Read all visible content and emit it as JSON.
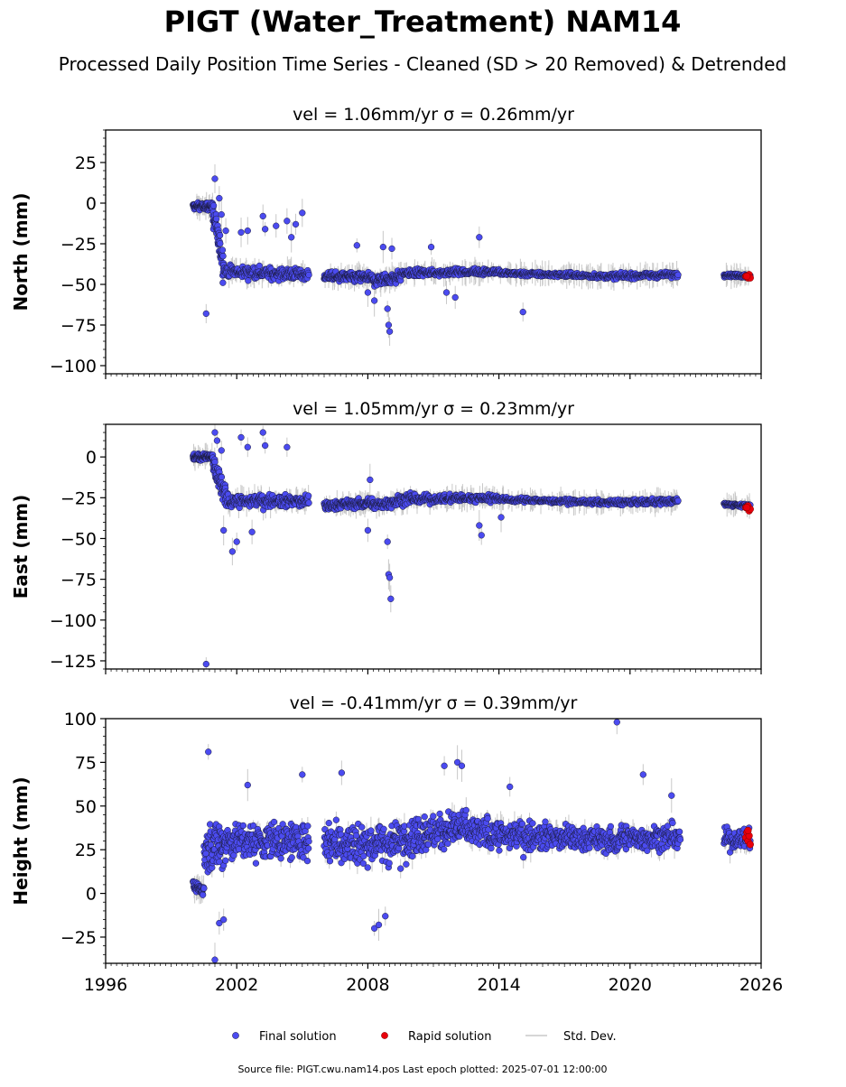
{
  "title": "PIGT (Water_Treatment) NAM14",
  "subtitle": "Processed Daily Position Time Series - Cleaned (SD > 20 Removed) & Detrended",
  "footer": "Source file: PIGT.cwu.nam14.pos  Last epoch plotted: 2025-07-01 12:00:00",
  "colors": {
    "final": "#4b4bf0",
    "final_edge": "#1a1a3a",
    "rapid": "#e8000b",
    "stddev": "#c8c8c8",
    "axis": "#000000"
  },
  "legend": {
    "position": "bottom-center",
    "entries": [
      {
        "label": "Final solution",
        "color": "#4b4bf0"
      },
      {
        "label": "Rapid solution",
        "color": "#e8000b"
      },
      {
        "label": "Std. Dev.",
        "color": "#c8c8c8"
      }
    ]
  },
  "chart_data": [
    {
      "type": "scatter",
      "subplot_title": "vel = 1.06mm/yr   σ = 0.26mm/yr",
      "ylabel": "North (mm)",
      "xlim": [
        1996,
        2026
      ],
      "ylim": [
        -105,
        45
      ],
      "yticks": [
        25,
        0,
        -25,
        -50,
        -75,
        -100
      ],
      "ytick_labels": [
        "25",
        "0",
        "−25",
        "−50",
        "−75",
        "−100"
      ],
      "segments": [
        {
          "x": [
            2000.0,
            2000.9
          ],
          "y": [
            -2,
            -2
          ],
          "spread": 3,
          "n": 90
        },
        {
          "x": [
            2000.9,
            2001.4
          ],
          "y": [
            -5,
            -38
          ],
          "spread": 12,
          "n": 60
        },
        {
          "x": [
            2001.4,
            2005.3
          ],
          "y": [
            -42,
            -44
          ],
          "spread": 5,
          "n": 220
        },
        {
          "x": [
            2006.0,
            2008.2
          ],
          "y": [
            -45,
            -46
          ],
          "spread": 4,
          "n": 150
        },
        {
          "x": [
            2008.2,
            2009.5
          ],
          "y": [
            -48,
            -45
          ],
          "spread": 5,
          "n": 90
        },
        {
          "x": [
            2009.5,
            2014.0
          ],
          "y": [
            -43,
            -42
          ],
          "spread": 3,
          "n": 230
        },
        {
          "x": [
            2014.0,
            2019.0
          ],
          "y": [
            -43,
            -45
          ],
          "spread": 2,
          "n": 220
        },
        {
          "x": [
            2019.0,
            2022.2
          ],
          "y": [
            -45,
            -44
          ],
          "spread": 2.5,
          "n": 160
        },
        {
          "x": [
            2024.3,
            2025.5
          ],
          "y": [
            -44,
            -45
          ],
          "spread": 1.5,
          "n": 70
        }
      ],
      "outliers": [
        [
          2000.6,
          -68
        ],
        [
          2001.0,
          15
        ],
        [
          2001.2,
          3
        ],
        [
          2001.3,
          -7
        ],
        [
          2001.5,
          -17
        ],
        [
          2002.2,
          -18
        ],
        [
          2002.5,
          -17
        ],
        [
          2003.2,
          -8
        ],
        [
          2003.3,
          -16
        ],
        [
          2003.8,
          -14
        ],
        [
          2004.3,
          -11
        ],
        [
          2004.5,
          -21
        ],
        [
          2004.7,
          -13
        ],
        [
          2005.0,
          -6
        ],
        [
          2007.5,
          -26
        ],
        [
          2008.0,
          -55
        ],
        [
          2008.3,
          -60
        ],
        [
          2008.7,
          -27
        ],
        [
          2008.9,
          -65
        ],
        [
          2008.95,
          -75
        ],
        [
          2009.0,
          -79
        ],
        [
          2009.1,
          -28
        ],
        [
          2010.9,
          -27
        ],
        [
          2011.6,
          -55
        ],
        [
          2012.0,
          -58
        ],
        [
          2013.1,
          -21
        ],
        [
          2015.1,
          -67
        ]
      ],
      "rapid": [
        [
          2025.3,
          -45
        ],
        [
          2025.4,
          -46
        ],
        [
          2025.45,
          -44
        ],
        [
          2025.5,
          -46
        ],
        [
          2025.35,
          -45
        ]
      ]
    },
    {
      "type": "scatter",
      "subplot_title": "vel = 1.05mm/yr   σ = 0.23mm/yr",
      "ylabel": "East (mm)",
      "xlim": [
        1996,
        2026
      ],
      "ylim": [
        -130,
        20
      ],
      "yticks": [
        0,
        -25,
        -50,
        -75,
        -100,
        -125
      ],
      "ytick_labels": [
        "0",
        "−25",
        "−50",
        "−75",
        "−100",
        "−125"
      ],
      "segments": [
        {
          "x": [
            2000.0,
            2000.9
          ],
          "y": [
            0,
            0
          ],
          "spread": 3,
          "n": 90
        },
        {
          "x": [
            2000.9,
            2001.5
          ],
          "y": [
            -5,
            -25
          ],
          "spread": 10,
          "n": 60
        },
        {
          "x": [
            2001.5,
            2005.3
          ],
          "y": [
            -27,
            -27
          ],
          "spread": 5,
          "n": 220
        },
        {
          "x": [
            2006.0,
            2008.2
          ],
          "y": [
            -30,
            -28
          ],
          "spread": 4,
          "n": 150
        },
        {
          "x": [
            2008.2,
            2010.0
          ],
          "y": [
            -30,
            -25
          ],
          "spread": 5,
          "n": 110
        },
        {
          "x": [
            2010.0,
            2014.0
          ],
          "y": [
            -26,
            -25
          ],
          "spread": 3.5,
          "n": 220
        },
        {
          "x": [
            2014.0,
            2019.0
          ],
          "y": [
            -26,
            -28
          ],
          "spread": 2,
          "n": 220
        },
        {
          "x": [
            2019.0,
            2022.2
          ],
          "y": [
            -28,
            -27
          ],
          "spread": 2.5,
          "n": 160
        },
        {
          "x": [
            2024.3,
            2025.5
          ],
          "y": [
            -29,
            -30
          ],
          "spread": 1.5,
          "n": 70
        }
      ],
      "outliers": [
        [
          2000.6,
          -127
        ],
        [
          2001.0,
          15
        ],
        [
          2001.1,
          10
        ],
        [
          2001.3,
          4
        ],
        [
          2001.4,
          -45
        ],
        [
          2001.8,
          -58
        ],
        [
          2002.0,
          -52
        ],
        [
          2002.2,
          12
        ],
        [
          2002.5,
          6
        ],
        [
          2002.7,
          -46
        ],
        [
          2003.2,
          15
        ],
        [
          2003.3,
          7
        ],
        [
          2004.3,
          6
        ],
        [
          2008.0,
          -45
        ],
        [
          2008.1,
          -14
        ],
        [
          2008.9,
          -52
        ],
        [
          2008.95,
          -72
        ],
        [
          2009.0,
          -74
        ],
        [
          2009.05,
          -87
        ],
        [
          2013.1,
          -42
        ],
        [
          2013.2,
          -48
        ],
        [
          2014.1,
          -37
        ]
      ],
      "rapid": [
        [
          2025.3,
          -31
        ],
        [
          2025.4,
          -30
        ],
        [
          2025.45,
          -33
        ],
        [
          2025.5,
          -32
        ],
        [
          2025.35,
          -31
        ]
      ]
    },
    {
      "type": "scatter",
      "subplot_title": "vel = -0.41mm/yr   σ = 0.39mm/yr",
      "ylabel": "Height (mm)",
      "xlim": [
        1996,
        2026
      ],
      "ylim": [
        -40,
        100
      ],
      "yticks": [
        100,
        75,
        50,
        25,
        0,
        -25
      ],
      "ytick_labels": [
        "100",
        "75",
        "50",
        "25",
        "0",
        "−25"
      ],
      "xticks": [
        1996,
        2002,
        2008,
        2014,
        2020,
        2026
      ],
      "xtick_labels": [
        "1996",
        "2002",
        "2008",
        "2014",
        "2020",
        "2026"
      ],
      "segments": [
        {
          "x": [
            2000.0,
            2000.5
          ],
          "y": [
            3,
            3
          ],
          "spread": 6,
          "n": 40
        },
        {
          "x": [
            2000.5,
            2001.5
          ],
          "y": [
            25,
            30
          ],
          "spread": 20,
          "n": 80
        },
        {
          "x": [
            2001.5,
            2005.3
          ],
          "y": [
            30,
            30
          ],
          "spread": 15,
          "n": 230
        },
        {
          "x": [
            2006.0,
            2009.5
          ],
          "y": [
            30,
            28
          ],
          "spread": 17,
          "n": 210
        },
        {
          "x": [
            2009.5,
            2012.5
          ],
          "y": [
            32,
            38
          ],
          "spread": 15,
          "n": 190
        },
        {
          "x": [
            2012.5,
            2016.0
          ],
          "y": [
            35,
            32
          ],
          "spread": 11,
          "n": 200
        },
        {
          "x": [
            2016.0,
            2019.5
          ],
          "y": [
            33,
            30
          ],
          "spread": 10,
          "n": 200
        },
        {
          "x": [
            2019.5,
            2022.3
          ],
          "y": [
            32,
            32
          ],
          "spread": 10,
          "n": 160
        },
        {
          "x": [
            2024.3,
            2025.5
          ],
          "y": [
            31,
            31
          ],
          "spread": 8,
          "n": 70
        }
      ],
      "outliers": [
        [
          2000.7,
          81
        ],
        [
          2001.0,
          -38
        ],
        [
          2001.2,
          -17
        ],
        [
          2001.4,
          -15
        ],
        [
          2002.5,
          62
        ],
        [
          2005.0,
          68
        ],
        [
          2006.8,
          69
        ],
        [
          2008.3,
          -20
        ],
        [
          2008.5,
          -18
        ],
        [
          2008.8,
          -13
        ],
        [
          2011.5,
          73
        ],
        [
          2012.1,
          75
        ],
        [
          2012.3,
          73
        ],
        [
          2014.5,
          61
        ],
        [
          2019.4,
          98
        ],
        [
          2020.6,
          68
        ],
        [
          2021.9,
          56
        ]
      ],
      "rapid": [
        [
          2025.3,
          32
        ],
        [
          2025.35,
          35
        ],
        [
          2025.4,
          30
        ],
        [
          2025.45,
          33
        ],
        [
          2025.5,
          28
        ],
        [
          2025.4,
          36
        ]
      ]
    }
  ]
}
